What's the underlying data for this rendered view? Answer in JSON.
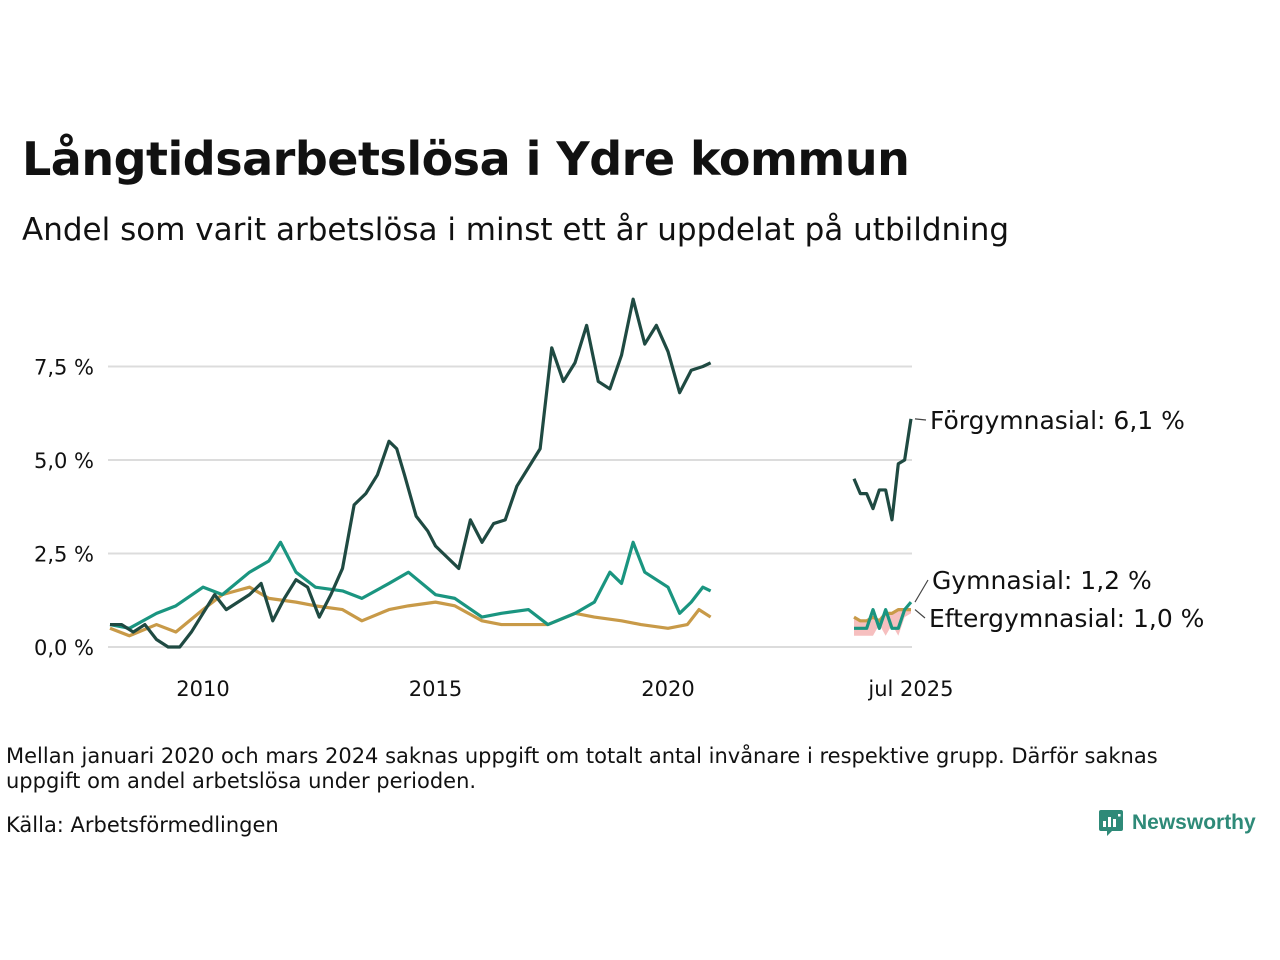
{
  "title": "Långtidsarbetslösa i Ydre kommun",
  "subtitle": "Andel som varit arbetslösa i minst ett år uppdelat på utbildning",
  "note": "Mellan januari 2020 och mars 2024 saknas uppgift om totalt antal invånare i respektive grupp. Därför saknas uppgift om andel arbetslösa under perioden.",
  "source": "Källa: Arbetsförmedlingen",
  "brand": "Newsworthy",
  "colors": {
    "forgymnasial": "#1f4a42",
    "gymnasial": "#1a9580",
    "eftergymnasial": "#c89a48",
    "band": "#f4b4b4",
    "grid": "#dcdcdc"
  },
  "chart_data": {
    "type": "line",
    "x_axis": {
      "segments": [
        {
          "start": "2008-01",
          "end": "2020-12",
          "ticks": [
            "2010",
            "2015",
            "2020"
          ]
        },
        {
          "start": "2024-10",
          "end": "2025-07",
          "ticks": [
            "jul 2025"
          ]
        }
      ]
    },
    "y_axis": {
      "range": [
        0,
        9.5
      ],
      "ticks": [
        0,
        2.5,
        5,
        7.5
      ],
      "tick_labels": [
        "0,0 %",
        "2,5 %",
        "5,0 %",
        "7,5 %"
      ],
      "grid": true
    },
    "series": [
      {
        "name": "Förgymnasial",
        "end_label": "Förgymnasial: 6,1 %",
        "color_key": "forgymnasial",
        "segment1": [
          [
            "2008-01",
            0.6
          ],
          [
            "2008-04",
            0.6
          ],
          [
            "2008-07",
            0.4
          ],
          [
            "2008-10",
            0.6
          ],
          [
            "2009-01",
            0.2
          ],
          [
            "2009-04",
            0.0
          ],
          [
            "2009-07",
            0.0
          ],
          [
            "2009-10",
            0.4
          ],
          [
            "2010-01",
            0.9
          ],
          [
            "2010-04",
            1.4
          ],
          [
            "2010-07",
            1.0
          ],
          [
            "2010-10",
            1.2
          ],
          [
            "2011-01",
            1.4
          ],
          [
            "2011-04",
            1.7
          ],
          [
            "2011-07",
            0.7
          ],
          [
            "2011-10",
            1.3
          ],
          [
            "2012-01",
            1.8
          ],
          [
            "2012-04",
            1.6
          ],
          [
            "2012-07",
            0.8
          ],
          [
            "2012-10",
            1.4
          ],
          [
            "2013-01",
            2.1
          ],
          [
            "2013-04",
            3.8
          ],
          [
            "2013-07",
            4.1
          ],
          [
            "2013-10",
            4.6
          ],
          [
            "2014-01",
            5.5
          ],
          [
            "2014-03",
            5.3
          ],
          [
            "2014-05",
            4.6
          ],
          [
            "2014-08",
            3.5
          ],
          [
            "2014-11",
            3.1
          ],
          [
            "2015-01",
            2.7
          ],
          [
            "2015-04",
            2.4
          ],
          [
            "2015-07",
            2.1
          ],
          [
            "2015-10",
            3.4
          ],
          [
            "2016-01",
            2.8
          ],
          [
            "2016-04",
            3.3
          ],
          [
            "2016-07",
            3.4
          ],
          [
            "2016-10",
            4.3
          ],
          [
            "2017-01",
            4.8
          ],
          [
            "2017-04",
            5.3
          ],
          [
            "2017-07",
            8.0
          ],
          [
            "2017-10",
            7.1
          ],
          [
            "2018-01",
            7.6
          ],
          [
            "2018-04",
            8.6
          ],
          [
            "2018-07",
            7.1
          ],
          [
            "2018-10",
            6.9
          ],
          [
            "2019-01",
            7.8
          ],
          [
            "2019-04",
            9.3
          ],
          [
            "2019-07",
            8.1
          ],
          [
            "2019-10",
            8.6
          ],
          [
            "2020-01",
            7.9
          ],
          [
            "2020-04",
            6.8
          ],
          [
            "2020-07",
            7.4
          ],
          [
            "2020-10",
            7.5
          ],
          [
            "2020-12",
            7.6
          ]
        ],
        "segment2": [
          [
            "2024-10",
            4.5
          ],
          [
            "2024-11",
            4.1
          ],
          [
            "2024-12",
            4.1
          ],
          [
            "2025-01",
            3.7
          ],
          [
            "2025-02",
            4.2
          ],
          [
            "2025-03",
            4.2
          ],
          [
            "2025-04",
            3.4
          ],
          [
            "2025-05",
            4.9
          ],
          [
            "2025-06",
            5.0
          ],
          [
            "2025-07",
            6.1
          ]
        ]
      },
      {
        "name": "Gymnasial",
        "end_label": "Gymnasial: 1,2 %",
        "color_key": "gymnasial",
        "segment1": [
          [
            "2008-01",
            0.6
          ],
          [
            "2008-06",
            0.5
          ],
          [
            "2009-01",
            0.9
          ],
          [
            "2009-06",
            1.1
          ],
          [
            "2010-01",
            1.6
          ],
          [
            "2010-06",
            1.4
          ],
          [
            "2011-01",
            2.0
          ],
          [
            "2011-06",
            2.3
          ],
          [
            "2011-09",
            2.8
          ],
          [
            "2012-01",
            2.0
          ],
          [
            "2012-06",
            1.6
          ],
          [
            "2013-01",
            1.5
          ],
          [
            "2013-06",
            1.3
          ],
          [
            "2014-01",
            1.7
          ],
          [
            "2014-06",
            2.0
          ],
          [
            "2015-01",
            1.4
          ],
          [
            "2015-06",
            1.3
          ],
          [
            "2016-01",
            0.8
          ],
          [
            "2016-06",
            0.9
          ],
          [
            "2017-01",
            1.0
          ],
          [
            "2017-06",
            0.6
          ],
          [
            "2018-01",
            0.9
          ],
          [
            "2018-06",
            1.2
          ],
          [
            "2018-10",
            2.0
          ],
          [
            "2019-01",
            1.7
          ],
          [
            "2019-04",
            2.8
          ],
          [
            "2019-07",
            2.0
          ],
          [
            "2019-10",
            1.8
          ],
          [
            "2020-01",
            1.6
          ],
          [
            "2020-04",
            0.9
          ],
          [
            "2020-07",
            1.2
          ],
          [
            "2020-10",
            1.6
          ],
          [
            "2020-12",
            1.5
          ]
        ],
        "segment2": [
          [
            "2024-10",
            0.5
          ],
          [
            "2024-11",
            0.5
          ],
          [
            "2024-12",
            0.5
          ],
          [
            "2025-01",
            1.0
          ],
          [
            "2025-02",
            0.5
          ],
          [
            "2025-03",
            1.0
          ],
          [
            "2025-04",
            0.5
          ],
          [
            "2025-05",
            0.5
          ],
          [
            "2025-06",
            1.0
          ],
          [
            "2025-07",
            1.2
          ]
        ]
      },
      {
        "name": "Eftergymnasial",
        "end_label": "Eftergymnasial: 1,0 %",
        "color_key": "eftergymnasial",
        "segment1": [
          [
            "2008-01",
            0.5
          ],
          [
            "2008-06",
            0.3
          ],
          [
            "2009-01",
            0.6
          ],
          [
            "2009-06",
            0.4
          ],
          [
            "2010-01",
            1.0
          ],
          [
            "2010-06",
            1.4
          ],
          [
            "2011-01",
            1.6
          ],
          [
            "2011-06",
            1.3
          ],
          [
            "2012-01",
            1.2
          ],
          [
            "2012-06",
            1.1
          ],
          [
            "2013-01",
            1.0
          ],
          [
            "2013-06",
            0.7
          ],
          [
            "2014-01",
            1.0
          ],
          [
            "2014-06",
            1.1
          ],
          [
            "2015-01",
            1.2
          ],
          [
            "2015-06",
            1.1
          ],
          [
            "2016-01",
            0.7
          ],
          [
            "2016-06",
            0.6
          ],
          [
            "2017-01",
            0.6
          ],
          [
            "2017-06",
            0.6
          ],
          [
            "2018-01",
            0.9
          ],
          [
            "2018-06",
            0.8
          ],
          [
            "2019-01",
            0.7
          ],
          [
            "2019-06",
            0.6
          ],
          [
            "2020-01",
            0.5
          ],
          [
            "2020-06",
            0.6
          ],
          [
            "2020-09",
            1.0
          ],
          [
            "2020-12",
            0.8
          ]
        ],
        "segment2": [
          [
            "2024-10",
            0.8
          ],
          [
            "2024-11",
            0.7
          ],
          [
            "2024-12",
            0.7
          ],
          [
            "2025-01",
            0.8
          ],
          [
            "2025-02",
            0.7
          ],
          [
            "2025-03",
            0.9
          ],
          [
            "2025-04",
            0.9
          ],
          [
            "2025-05",
            1.0
          ],
          [
            "2025-06",
            1.0
          ],
          [
            "2025-07",
            1.0
          ]
        ]
      }
    ],
    "uncertainty_band": {
      "color_key": "band",
      "points": [
        [
          "2024-10",
          0.3,
          0.8
        ],
        [
          "2024-11",
          0.3,
          0.7
        ],
        [
          "2024-12",
          0.3,
          0.7
        ],
        [
          "2025-01",
          0.3,
          0.8
        ],
        [
          "2025-02",
          0.6,
          0.7
        ],
        [
          "2025-03",
          0.3,
          0.9
        ],
        [
          "2025-04",
          0.6,
          0.9
        ],
        [
          "2025-05",
          0.3,
          1.0
        ],
        [
          "2025-06",
          0.8,
          1.0
        ],
        [
          "2025-07",
          0.9,
          1.0
        ]
      ]
    }
  }
}
